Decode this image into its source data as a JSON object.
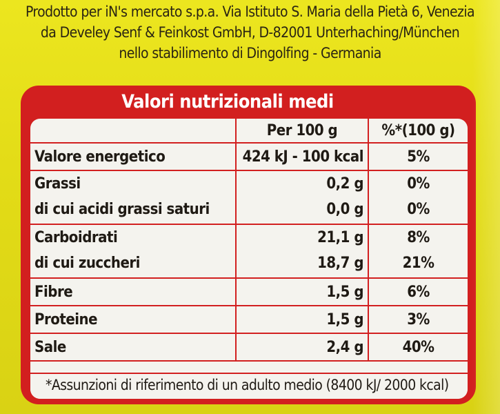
{
  "producer": {
    "line1": "Prodotto per iN's mercato s.p.a. Via Istituto S. Maria della Pietà 6, Venezia",
    "line2": "da Develey Senf & Feinkost GmbH, D-82001 Unterhaching/München",
    "line3": "nello stabilimento di Dingolfing - Germania"
  },
  "label": {
    "title": "Valori nutrizionali medi",
    "col_per": "Per 100 g",
    "col_pct": "%*(100 g)",
    "rows": [
      {
        "name": "Valore energetico",
        "per": "424 kJ - 100 kcal",
        "pct": "5%"
      },
      {
        "name": "Grassi",
        "per": "0,2 g",
        "pct": "0%"
      },
      {
        "name": "di cui acidi grassi saturi",
        "per": "0,0 g",
        "pct": "0%"
      },
      {
        "name": "Carboidrati",
        "per": "21,1 g",
        "pct": "8%"
      },
      {
        "name": "di cui zuccheri",
        "per": "18,7 g",
        "pct": "21%"
      },
      {
        "name": "Fibre",
        "per": "1,5 g",
        "pct": "6%"
      },
      {
        "name": "Proteine",
        "per": "1,5 g",
        "pct": "3%"
      },
      {
        "name": "Sale",
        "per": "2,4 g",
        "pct": "40%"
      }
    ],
    "footnote": "*Assunzioni di riferimento di un adulto medio (8400 kJ/ 2000 kcal)"
  },
  "colors": {
    "background": "#e5df1a",
    "label_red": "#d21f1f",
    "panel": "#f4f3ee",
    "text": "#1f1a14"
  }
}
